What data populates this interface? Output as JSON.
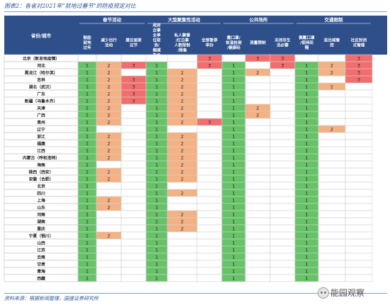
{
  "title": "图表2：各省对2021年“就地过春节”的防疫规定对比",
  "source": "资料来源：根据新闻整理，国盛证券研究所",
  "watermark": "能园观察",
  "colors": {
    "1": "#66c266",
    "2": "#f4b183",
    "3": "#f26d6d",
    "header": "#2e4f8a",
    "headerText": "#ffffff"
  },
  "header": {
    "province": "省份/城市",
    "groups": [
      "春节活动",
      "大型聚集性活动",
      "公共场所",
      "交通限制"
    ],
    "columns": [
      "鼓励就地过年",
      "减少出行活动",
      "建议居家过节",
      "政府企事业单位取消/缩减年会举办",
      "私人聚餐/红白事人数限制/报备",
      "全部暂停举办",
      "戴口罩/体温检测/健康码",
      "流量限制",
      "关闭非生活必需",
      "佩戴口罩/保持间隔",
      "进出城管控",
      "社区封闭式管理"
    ]
  },
  "rows": [
    {
      "name": "北京（新发地疫情）",
      "cells": [
        0,
        0,
        0,
        0,
        0,
        3,
        0,
        3,
        3,
        0,
        0,
        3
      ]
    },
    {
      "name": "河北",
      "cells": [
        1,
        2,
        3,
        1,
        0,
        3,
        1,
        0,
        3,
        1,
        2,
        3
      ]
    },
    {
      "name": "黑龙江（哈尔滨）",
      "cells": [
        1,
        2,
        0,
        1,
        2,
        0,
        1,
        2,
        0,
        1,
        2,
        3
      ]
    },
    {
      "name": "吉林",
      "cells": [
        1,
        2,
        3,
        1,
        2,
        0,
        1,
        0,
        0,
        1,
        0,
        3
      ]
    },
    {
      "name": "湖北（武汉）",
      "cells": [
        1,
        2,
        3,
        1,
        2,
        0,
        1,
        0,
        0,
        1,
        2,
        0
      ]
    },
    {
      "name": "广东",
      "cells": [
        1,
        2,
        3,
        1,
        2,
        0,
        1,
        0,
        0,
        1,
        0,
        0
      ]
    },
    {
      "name": "新疆（乌鲁木齐）",
      "cells": [
        1,
        2,
        3,
        1,
        2,
        0,
        1,
        0,
        0,
        1,
        0,
        0
      ]
    },
    {
      "name": "天津",
      "cells": [
        1,
        2,
        0,
        1,
        2,
        0,
        1,
        2,
        0,
        1,
        0,
        0
      ]
    },
    {
      "name": "广西",
      "cells": [
        1,
        2,
        0,
        1,
        2,
        0,
        1,
        2,
        0,
        1,
        0,
        0
      ]
    },
    {
      "name": "贵州",
      "cells": [
        1,
        2,
        0,
        1,
        2,
        3,
        1,
        0,
        0,
        1,
        0,
        0
      ]
    },
    {
      "name": "辽宁",
      "cells": [
        1,
        0,
        0,
        1,
        0,
        0,
        1,
        0,
        0,
        1,
        2,
        0
      ]
    },
    {
      "name": "浙江",
      "cells": [
        1,
        2,
        0,
        1,
        2,
        0,
        1,
        0,
        0,
        1,
        0,
        0
      ]
    },
    {
      "name": "福建",
      "cells": [
        1,
        2,
        0,
        1,
        2,
        0,
        1,
        0,
        0,
        1,
        0,
        0
      ]
    },
    {
      "name": "江西",
      "cells": [
        1,
        2,
        0,
        1,
        2,
        0,
        1,
        0,
        0,
        1,
        0,
        0
      ]
    },
    {
      "name": "内蒙古（呼和浩特）",
      "cells": [
        1,
        2,
        0,
        1,
        2,
        0,
        1,
        0,
        0,
        1,
        0,
        0
      ]
    },
    {
      "name": "海南",
      "cells": [
        1,
        0,
        0,
        1,
        2,
        0,
        1,
        0,
        0,
        1,
        0,
        0
      ]
    },
    {
      "name": "陕西（西安）",
      "cells": [
        1,
        2,
        0,
        1,
        2,
        0,
        1,
        0,
        0,
        1,
        0,
        0
      ]
    },
    {
      "name": "安徽（合肥）",
      "cells": [
        1,
        2,
        0,
        1,
        2,
        0,
        1,
        0,
        0,
        1,
        0,
        0
      ]
    },
    {
      "name": "北京",
      "cells": [
        1,
        0,
        0,
        1,
        0,
        0,
        1,
        0,
        0,
        1,
        0,
        0
      ]
    },
    {
      "name": "四川",
      "cells": [
        1,
        0,
        0,
        1,
        2,
        0,
        1,
        0,
        0,
        1,
        0,
        0
      ]
    },
    {
      "name": "上海",
      "cells": [
        1,
        2,
        0,
        1,
        0,
        0,
        1,
        0,
        0,
        1,
        0,
        0
      ]
    },
    {
      "name": "山东",
      "cells": [
        1,
        2,
        0,
        1,
        0,
        0,
        1,
        0,
        0,
        1,
        0,
        0
      ]
    },
    {
      "name": "河南",
      "cells": [
        1,
        0,
        0,
        1,
        2,
        0,
        1,
        0,
        0,
        1,
        0,
        0
      ]
    },
    {
      "name": "湖南",
      "cells": [
        1,
        0,
        0,
        1,
        2,
        0,
        1,
        0,
        0,
        1,
        0,
        0
      ]
    },
    {
      "name": "重庆",
      "cells": [
        1,
        0,
        0,
        1,
        2,
        0,
        1,
        0,
        0,
        1,
        0,
        0
      ]
    },
    {
      "name": "宁夏（银川）",
      "cells": [
        1,
        2,
        0,
        1,
        0,
        0,
        1,
        0,
        0,
        1,
        0,
        0
      ]
    },
    {
      "name": "山西",
      "cells": [
        1,
        0,
        0,
        1,
        0,
        0,
        1,
        0,
        0,
        1,
        0,
        0
      ]
    },
    {
      "name": "江苏",
      "cells": [
        1,
        0,
        0,
        1,
        0,
        0,
        1,
        0,
        0,
        1,
        0,
        0
      ]
    },
    {
      "name": "云南",
      "cells": [
        1,
        0,
        0,
        1,
        0,
        0,
        1,
        0,
        0,
        1,
        0,
        0
      ]
    },
    {
      "name": "甘肃",
      "cells": [
        1,
        0,
        0,
        1,
        0,
        0,
        1,
        0,
        0,
        1,
        0,
        0
      ]
    },
    {
      "name": "青海",
      "cells": [
        1,
        0,
        0,
        1,
        0,
        0,
        1,
        0,
        0,
        1,
        0,
        0
      ]
    },
    {
      "name": "西藏",
      "cells": [
        1,
        0,
        0,
        1,
        0,
        0,
        1,
        0,
        0,
        1,
        0,
        0
      ]
    }
  ]
}
